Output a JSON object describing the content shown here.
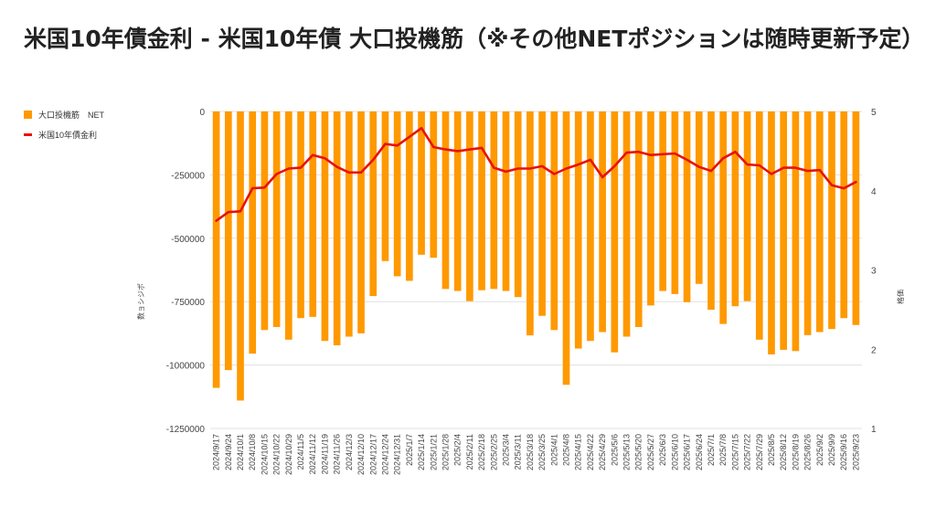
{
  "title": "米国10年債金利 - 米国10年債 大口投機筋（※その他NETポジションは随時更新予定）",
  "legend": {
    "bar_label": "大口投機筋　NET",
    "line_label": "米国10年債金利"
  },
  "colors": {
    "bar": "#ff9900",
    "line": "#e8120c",
    "grid": "#e0e0e0"
  },
  "chart_data": {
    "type": "bar",
    "title": "米国10年債金利 - 米国10年債 大口投機筋（※その他NETポジションは随時更新予定）",
    "x": [
      "2024/9/17",
      "2024/9/24",
      "2024/10/1",
      "2024/10/8",
      "2024/10/15",
      "2024/10/22",
      "2024/10/29",
      "2024/11/5",
      "2024/11/12",
      "2024/11/19",
      "2024/11/26",
      "2024/12/3",
      "2024/12/10",
      "2024/12/17",
      "2024/12/24",
      "2024/12/31",
      "2025/1/7",
      "2025/1/14",
      "2025/1/21",
      "2025/1/28",
      "2025/2/4",
      "2025/2/11",
      "2025/2/18",
      "2025/2/25",
      "2025/3/4",
      "2025/3/11",
      "2025/3/18",
      "2025/3/25",
      "2025/4/1",
      "2025/4/8",
      "2025/4/15",
      "2025/4/22",
      "2025/4/29",
      "2025/5/6",
      "2025/5/13",
      "2025/5/20",
      "2025/5/27",
      "2025/6/3",
      "2025/6/10",
      "2025/6/17",
      "2025/6/24",
      "2025/7/1",
      "2025/7/8",
      "2025/7/15",
      "2025/7/22",
      "2025/7/29",
      "2025/8/5",
      "2025/8/12",
      "2025/8/19",
      "2025/8/26",
      "2025/9/2",
      "2025/9/9",
      "2025/9/16",
      "2025/9/23"
    ],
    "tick_labels": [
      "2024/9/17",
      "2024/9/24",
      "2024/10/1",
      "2024/10/8",
      "2024/10/15",
      "2024/10/22",
      "2024/10/29",
      "2024/11/5",
      "2024/11/12",
      "2024/11/19",
      "2024/11/26",
      "2024/12/3",
      "2024/12/10",
      "2024/12/17",
      "2024/12/24",
      "2024/12/31",
      "2025/1/7",
      "2025/1/14",
      "2025/1/21",
      "2025/1/28",
      "2025/2/4",
      "2025/2/11",
      "2025/2/18",
      "2025/2/25",
      "2025/3/4",
      "2025/3/11",
      "2025/3/18",
      "2025/3/25",
      "2025/4/1",
      "2025/4/8",
      "2025/4/15",
      "2025/4/22",
      "2025/4/29",
      "2025/5/6",
      "2025/5/13",
      "2025/5/20",
      "2025/5/27",
      "2025/6/3",
      "2025/6/10",
      "2025/6/17",
      "2025/6/24",
      "2025/7/1",
      "2025/7/8",
      "2025/7/15",
      "2025/7/22",
      "2025/7/29",
      "2025/8/5",
      "2025/8/12",
      "2025/8/19",
      "2025/8/26",
      "2025/9/2",
      "2025/9/9",
      "2025/9/16",
      "2025/9/23"
    ],
    "bars": {
      "name": "大口投機筋　NET",
      "axis": "left",
      "values": [
        -1090000,
        -1020000,
        -1140000,
        -955000,
        -862000,
        -850000,
        -900000,
        -815000,
        -810000,
        -905000,
        -922000,
        -888000,
        -875000,
        -728000,
        -590000,
        -650000,
        -668000,
        -565000,
        -577000,
        -700000,
        -708000,
        -748000,
        -705000,
        -700000,
        -708000,
        -732000,
        -883000,
        -806000,
        -862000,
        -1078000,
        -935000,
        -905000,
        -870000,
        -950000,
        -888000,
        -850000,
        -765000,
        -708000,
        -720000,
        -752000,
        -680000,
        -782000,
        -838000,
        -768000,
        -748000,
        -900000,
        -958000,
        -940000,
        -945000,
        -882000,
        -870000,
        -858000,
        -815000,
        -842000
      ]
    },
    "line": {
      "name": "米国10年債金利",
      "axis": "right",
      "values": [
        3.62,
        3.73,
        3.74,
        4.03,
        4.04,
        4.21,
        4.28,
        4.29,
        4.45,
        4.41,
        4.3,
        4.23,
        4.23,
        4.39,
        4.59,
        4.57,
        4.68,
        4.79,
        4.55,
        4.52,
        4.5,
        4.52,
        4.54,
        4.29,
        4.24,
        4.28,
        4.28,
        4.31,
        4.21,
        4.28,
        4.33,
        4.39,
        4.17,
        4.31,
        4.48,
        4.49,
        4.45,
        4.46,
        4.47,
        4.39,
        4.3,
        4.25,
        4.41,
        4.49,
        4.33,
        4.32,
        4.21,
        4.29,
        4.29,
        4.25,
        4.26,
        4.07,
        4.03,
        4.11
      ]
    },
    "ylabel_left": "数ョシジポ",
    "ylabel_right": "格価",
    "ylim_left": [
      -1250000,
      0
    ],
    "yticks_left": [
      0,
      -250000,
      -500000,
      -750000,
      -1000000,
      -1250000
    ],
    "ytick_labels_left": [
      "0",
      "-250000",
      "-500000",
      "-750000",
      "-1000000",
      "-1250000"
    ],
    "ylim_right": [
      1,
      5
    ],
    "yticks_right": [
      5,
      4,
      3,
      2,
      1
    ],
    "ytick_labels_right": [
      "5",
      "4",
      "3",
      "2",
      "1"
    ],
    "grid": true,
    "legend_position": "top-left"
  }
}
